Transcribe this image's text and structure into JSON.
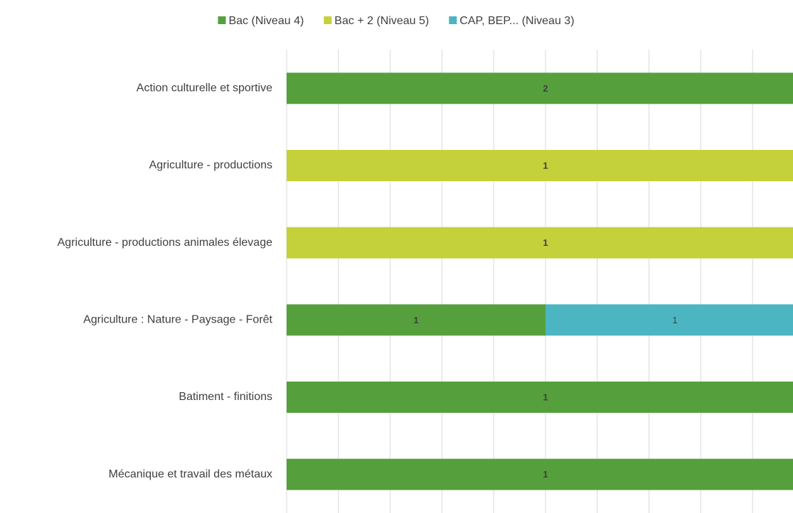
{
  "chart_data": {
    "type": "stacked-bar-100-horizontal",
    "categories": [
      "Action culturelle et sportive",
      "Agriculture - productions ",
      "Agriculture - productions animales élevage",
      "Agriculture : Nature - Paysage - Forêt",
      "Batiment - finitions",
      "Mécanique et travail des métaux"
    ],
    "series": [
      {
        "name": "Bac (Niveau 4)",
        "color": "#55a03c",
        "values": [
          2,
          null,
          null,
          1,
          1,
          1
        ]
      },
      {
        "name": "Bac + 2 (Niveau 5)",
        "color": "#c4d13b",
        "values": [
          null,
          1,
          1,
          null,
          null,
          null
        ]
      },
      {
        "name": "CAP, BEP... (Niveau 3)",
        "color": "#4bb5c1",
        "values": [
          null,
          null,
          null,
          1,
          null,
          null
        ]
      }
    ],
    "xlim": [
      0,
      100
    ],
    "xticks": [
      0,
      10,
      20,
      30,
      40,
      50,
      60,
      70,
      80,
      90,
      100
    ],
    "grid": true,
    "legend": "top"
  }
}
